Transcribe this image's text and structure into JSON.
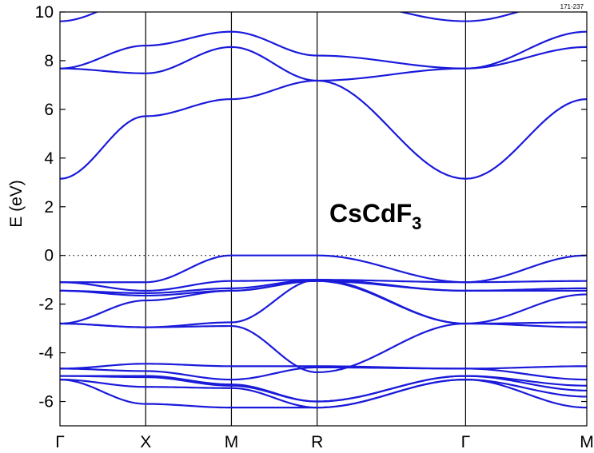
{
  "chart_data": {
    "type": "line",
    "title": "",
    "figure_id": "171-237",
    "compound": {
      "base": "CsCdF",
      "subscript": "3"
    },
    "xlabel": "",
    "ylabel": "E  (eV)",
    "ylim": [
      -7,
      10
    ],
    "yticks": [
      -6,
      -4,
      -2,
      0,
      2,
      4,
      6,
      8,
      10
    ],
    "ytick_labels": [
      "-6",
      "-4",
      "-2",
      "0",
      "2",
      "4",
      "6",
      "8",
      "10"
    ],
    "k_points": [
      {
        "label": "Γ",
        "x": 0.0
      },
      {
        "label": "X",
        "x": 0.5
      },
      {
        "label": "M",
        "x": 1.0
      },
      {
        "label": "R",
        "x": 1.5
      },
      {
        "label": "Γ",
        "x": 2.366
      },
      {
        "label": "M",
        "x": 3.073
      }
    ],
    "fermi_level": 0,
    "line_color": "#1a1adb",
    "grid": false,
    "legend": "none",
    "series": [
      {
        "x": [
          0,
          0.5,
          1.0,
          1.5,
          2.366,
          3.073
        ],
        "values": [
          3.15,
          5.72,
          6.42,
          7.18,
          3.15,
          6.42
        ]
      },
      {
        "x": [
          0,
          0.5,
          1.0,
          1.5,
          2.366,
          3.073
        ],
        "values": [
          7.68,
          7.48,
          8.56,
          7.18,
          7.68,
          8.56
        ]
      },
      {
        "x": [
          0,
          0.5,
          1.0,
          1.5,
          2.366,
          3.073
        ],
        "values": [
          7.68,
          8.62,
          9.19,
          8.21,
          7.68,
          9.19
        ]
      },
      {
        "x": [
          0,
          0.5,
          1.0,
          1.5,
          2.366,
          3.073
        ],
        "values": [
          9.62,
          10.6,
          10.6,
          10.6,
          9.62,
          10.6
        ]
      },
      {
        "x": [
          0,
          0.5,
          1.0,
          1.5,
          2.366,
          3.073
        ],
        "values": [
          -1.1,
          -1.1,
          0.0,
          0.0,
          -1.1,
          0.0
        ]
      },
      {
        "x": [
          0,
          0.5,
          1.0,
          1.5,
          2.366,
          3.073
        ],
        "values": [
          -1.1,
          -1.45,
          -1.05,
          -1.0,
          -1.1,
          -1.05
        ]
      },
      {
        "x": [
          0,
          0.5,
          1.0,
          1.5,
          2.366,
          3.073
        ],
        "values": [
          -1.45,
          -1.55,
          -1.35,
          -1.0,
          -1.45,
          -1.35
        ]
      },
      {
        "x": [
          0,
          0.5,
          1.0,
          1.5,
          2.366,
          3.073
        ],
        "values": [
          -1.45,
          -1.65,
          -1.45,
          -1.05,
          -1.45,
          -1.45
        ]
      },
      {
        "x": [
          0,
          0.5,
          1.0,
          1.5,
          2.366,
          3.073
        ],
        "values": [
          -2.8,
          -1.85,
          -1.45,
          -1.05,
          -2.8,
          -1.6
        ]
      },
      {
        "x": [
          0,
          0.5,
          1.0,
          1.5,
          2.366,
          3.073
        ],
        "values": [
          -2.8,
          -2.95,
          -2.75,
          -1.0,
          -2.8,
          -2.75
        ]
      },
      {
        "x": [
          0,
          0.5,
          1.0,
          1.5,
          2.366,
          3.073
        ],
        "values": [
          -2.8,
          -2.95,
          -2.9,
          -4.8,
          -2.8,
          -2.95
        ]
      },
      {
        "x": [
          0,
          0.5,
          1.0,
          1.5,
          2.366,
          3.073
        ],
        "values": [
          -4.65,
          -4.45,
          -4.55,
          -4.55,
          -4.65,
          -4.55
        ]
      },
      {
        "x": [
          0,
          0.5,
          1.0,
          1.5,
          2.366,
          3.073
        ],
        "values": [
          -4.65,
          -4.75,
          -5.1,
          -4.6,
          -4.65,
          -5.1
        ]
      },
      {
        "x": [
          0,
          0.5,
          1.0,
          1.5,
          2.366,
          3.073
        ],
        "values": [
          -4.95,
          -4.95,
          -5.3,
          -6.0,
          -4.95,
          -5.35
        ]
      },
      {
        "x": [
          0,
          0.5,
          1.0,
          1.5,
          2.366,
          3.073
        ],
        "values": [
          -4.95,
          -5.0,
          -5.35,
          -6.0,
          -4.95,
          -5.55
        ]
      },
      {
        "x": [
          0,
          0.5,
          1.0,
          1.5,
          2.366,
          3.073
        ],
        "values": [
          -5.1,
          -5.4,
          -5.45,
          -6.25,
          -5.1,
          -5.8
        ]
      },
      {
        "x": [
          0,
          0.5,
          1.0,
          1.5,
          2.366,
          3.073
        ],
        "values": [
          -5.1,
          -6.1,
          -6.25,
          -6.25,
          -5.1,
          -6.25
        ]
      }
    ]
  }
}
